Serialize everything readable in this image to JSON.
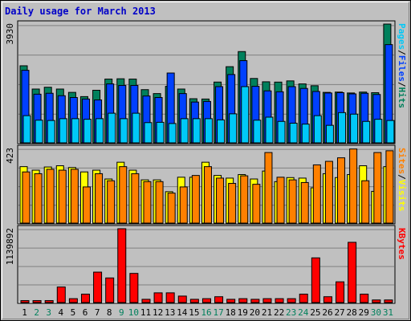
{
  "chart_data": {
    "type": "bar",
    "title": "Daily usage for March 2013",
    "categories": [
      "1",
      "2",
      "3",
      "4",
      "5",
      "6",
      "7",
      "8",
      "9",
      "10",
      "11",
      "12",
      "13",
      "14",
      "15",
      "16",
      "17",
      "18",
      "19",
      "20",
      "21",
      "22",
      "23",
      "24",
      "25",
      "26",
      "27",
      "28",
      "29",
      "30",
      "31"
    ],
    "weekend_days": [
      "2",
      "3",
      "9",
      "10",
      "16",
      "17",
      "23",
      "24",
      "30",
      "31"
    ],
    "colors": {
      "hits": "#00805c",
      "files": "#0040ff",
      "pages": "#00c8f8",
      "visits": "#ffff00",
      "sites": "#ff8000",
      "kbytes": "#ff0000",
      "weekday_label": "#000000",
      "weekend_label": "#00805c",
      "title": "#0000c8",
      "panel_bg": "#c0c0c0"
    },
    "panels": [
      {
        "ylabel_parts": [
          "Pages",
          "/",
          "Files",
          "/",
          "Hits"
        ],
        "ylabel_colors": [
          "#00c8f8",
          "#000000",
          "#0040ff",
          "#000000",
          "#00805c"
        ],
        "max_label": "3930",
        "ylim": [
          0,
          3930
        ],
        "series": [
          {
            "name": "Hits",
            "values": [
              2550,
              1780,
              1840,
              1780,
              1670,
              1530,
              1740,
              2110,
              2120,
              2110,
              1760,
              1630,
              1870,
              1780,
              1460,
              1450,
              2011,
              2520,
              3020,
              2130,
              2020,
              2010,
              2050,
              1950,
              1890,
              1670,
              1680,
              1650,
              1680,
              1660,
              3930
            ]
          },
          {
            "name": "Files",
            "values": [
              2400,
              1610,
              1640,
              1560,
              1500,
              1450,
              1420,
              1950,
              1900,
              1900,
              1550,
              1500,
              2310,
              1630,
              1350,
              1370,
              1860,
              2260,
              2720,
              1870,
              1720,
              1690,
              1860,
              1800,
              1700,
              1650,
              1660,
              1620,
              1640,
              1600,
              3250
            ]
          },
          {
            "name": "Pages",
            "values": [
              900,
              750,
              740,
              800,
              800,
              780,
              800,
              980,
              800,
              980,
              670,
              680,
              640,
              800,
              800,
              800,
              760,
              960,
              1860,
              750,
              850,
              710,
              650,
              620,
              900,
              580,
              1000,
              950,
              710,
              780,
              740
            ]
          }
        ]
      },
      {
        "ylabel_parts": [
          "Sites",
          "/",
          "Visits"
        ],
        "ylabel_colors": [
          "#ff8000",
          "#000000",
          "#ffff00"
        ],
        "max_label": "423",
        "ylim": [
          0,
          423
        ],
        "series": [
          {
            "name": "Visits",
            "values": [
              320,
              300,
              318,
              325,
              315,
              290,
              300,
              250,
              345,
              300,
              245,
              245,
              178,
              260,
              260,
              345,
              270,
              255,
              275,
              250,
              295,
              235,
              258,
              255,
              200,
              280,
              258,
              275,
              325,
              180,
              320
            ]
          },
          {
            "name": "Sites",
            "values": [
              290,
              280,
              305,
              300,
              305,
              205,
              280,
              240,
              320,
              280,
              235,
              235,
              170,
              205,
              270,
              320,
              255,
              225,
              268,
              220,
              400,
              260,
              245,
              230,
              330,
              350,
              370,
              420,
              240,
              400,
              410
            ]
          }
        ]
      },
      {
        "ylabel_parts": [
          "KBytes"
        ],
        "ylabel_colors": [
          "#ff0000"
        ],
        "max_label": "1139892",
        "ylim": [
          0,
          1139892
        ],
        "series": [
          {
            "name": "KBytes",
            "values": [
              30000,
              30000,
              30000,
              240000,
              60000,
              130000,
              470000,
              380000,
              1139892,
              450000,
              50000,
              150000,
              150000,
              100000,
              50000,
              60000,
              90000,
              50000,
              60000,
              50000,
              60000,
              60000,
              60000,
              130000,
              690000,
              90000,
              320000,
              930000,
              130000,
              40000,
              40000
            ]
          }
        ]
      }
    ]
  }
}
